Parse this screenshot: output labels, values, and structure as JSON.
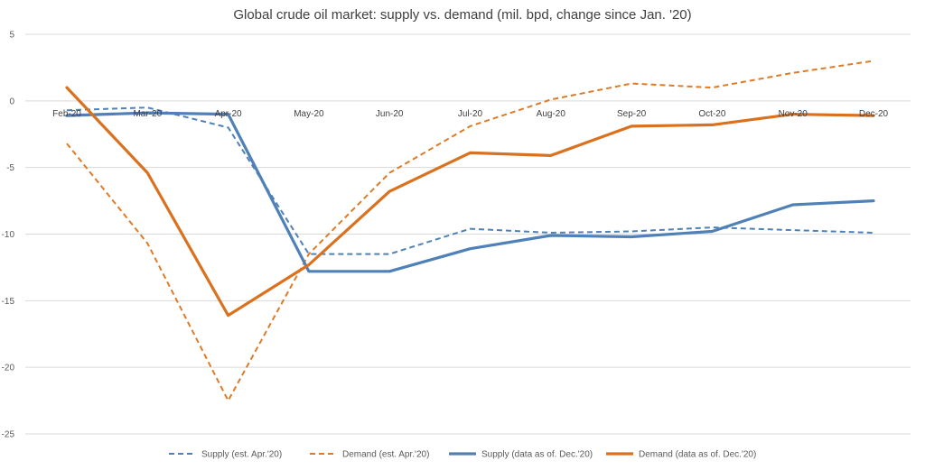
{
  "chart_data": {
    "type": "line",
    "title": "Global crude oil market: supply vs. demand (mil. bpd, change since Jan. '20)",
    "xlabel": "",
    "ylabel": "",
    "ylim": [
      -25,
      5
    ],
    "yticks": [
      5,
      0,
      -5,
      -10,
      -15,
      -20,
      -25
    ],
    "grid": true,
    "legend_position": "bottom",
    "categories": [
      "Feb-20",
      "Mar-20",
      "Apr-20",
      "May-20",
      "Jun-20",
      "Jul-20",
      "Aug-20",
      "Sep-20",
      "Oct-20",
      "Nov-20",
      "Dec-20"
    ],
    "series": [
      {
        "name": "Supply (est. Apr.'20)",
        "color": "#4f81b8",
        "dashed": true,
        "width": 2,
        "values": [
          -0.7,
          -0.5,
          -2.0,
          -11.5,
          -11.5,
          -9.6,
          -9.9,
          -9.8,
          -9.5,
          -9.7,
          -9.9
        ]
      },
      {
        "name": "Demand (est. Apr.'20)",
        "color": "#de7b28",
        "dashed": true,
        "width": 2,
        "values": [
          -3.2,
          -10.7,
          -22.5,
          -11.5,
          -5.4,
          -1.9,
          0.1,
          1.3,
          1.0,
          2.1,
          3.0
        ]
      },
      {
        "name": "Supply (data as of. Dec.'20)",
        "color": "#4f81b8",
        "dashed": false,
        "width": 3.2,
        "values": [
          -1.1,
          -0.9,
          -1.0,
          -12.8,
          -12.8,
          -11.1,
          -10.1,
          -10.2,
          -9.8,
          -7.8,
          -7.5
        ]
      },
      {
        "name": "Demand (data as of. Dec.'20)",
        "color": "#d9711f",
        "dashed": false,
        "width": 3.2,
        "values": [
          1.0,
          -5.4,
          -16.1,
          -12.3,
          -6.8,
          -3.9,
          -4.1,
          -1.9,
          -1.8,
          -1.0,
          -1.1
        ]
      }
    ]
  }
}
